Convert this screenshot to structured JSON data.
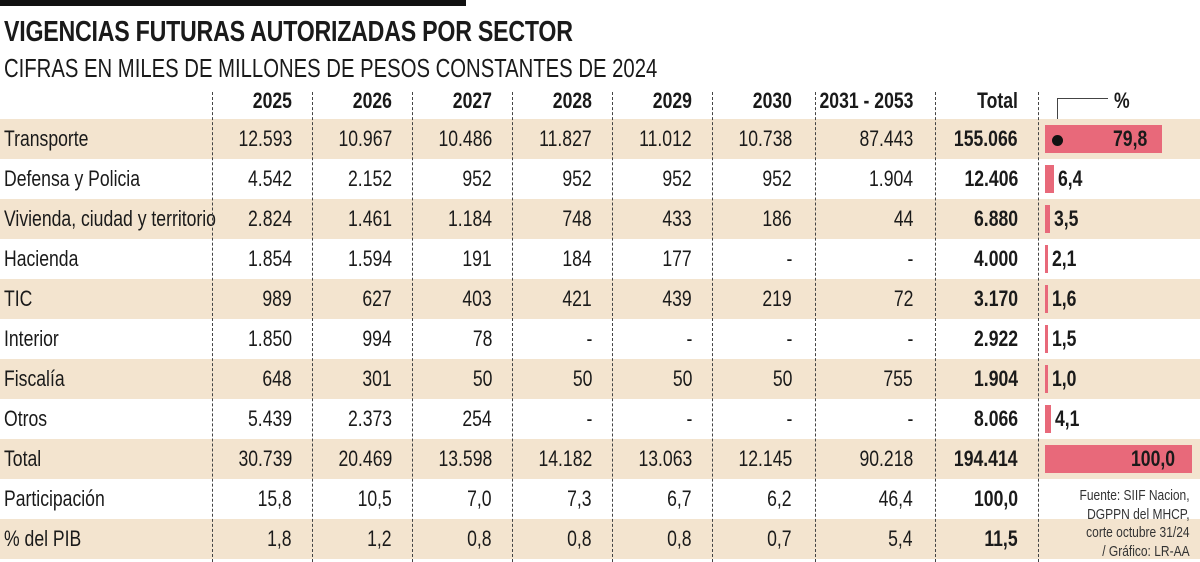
{
  "title": "VIGENCIAS FUTURAS AUTORIZADAS POR SECTOR",
  "subtitle": "CIFRAS EN MILES DE MILLONES DE PESOS CONSTANTES DE 2024",
  "colors": {
    "bar": "#e8697a",
    "row_shade": "#f3e4cf"
  },
  "chart_data": {
    "type": "table",
    "columns": [
      "2025",
      "2026",
      "2027",
      "2028",
      "2029",
      "2030",
      "2031 - 2053",
      "Total",
      "%"
    ],
    "rows": [
      {
        "label": "Transporte",
        "values": [
          "12.593",
          "10.967",
          "10.486",
          "11.827",
          "11.012",
          "10.738",
          "87.443",
          "155.066"
        ],
        "pct": "79,8",
        "pct_value": 79.8
      },
      {
        "label": "Defensa y Policia",
        "values": [
          "4.542",
          "2.152",
          "952",
          "952",
          "952",
          "952",
          "1.904",
          "12.406"
        ],
        "pct": "6,4",
        "pct_value": 6.4
      },
      {
        "label": "Vivienda, ciudad y territorio",
        "values": [
          "2.824",
          "1.461",
          "1.184",
          "748",
          "433",
          "186",
          "44",
          "6.880"
        ],
        "pct": "3,5",
        "pct_value": 3.5
      },
      {
        "label": "Hacienda",
        "values": [
          "1.854",
          "1.594",
          "191",
          "184",
          "177",
          "-",
          "-",
          "4.000"
        ],
        "pct": "2,1",
        "pct_value": 2.1
      },
      {
        "label": "TIC",
        "values": [
          "989",
          "627",
          "403",
          "421",
          "439",
          "219",
          "72",
          "3.170"
        ],
        "pct": "1,6",
        "pct_value": 1.6
      },
      {
        "label": "Interior",
        "values": [
          "1.850",
          "994",
          "78",
          "-",
          "-",
          "-",
          "-",
          "2.922"
        ],
        "pct": "1,5",
        "pct_value": 1.5
      },
      {
        "label": "Fiscalía",
        "values": [
          "648",
          "301",
          "50",
          "50",
          "50",
          "50",
          "755",
          "1.904"
        ],
        "pct": "1,0",
        "pct_value": 1.0
      },
      {
        "label": "Otros",
        "values": [
          "5.439",
          "2.373",
          "254",
          "-",
          "-",
          "-",
          "-",
          "8.066"
        ],
        "pct": "4,1",
        "pct_value": 4.1
      },
      {
        "label": "Total",
        "values": [
          "30.739",
          "20.469",
          "13.598",
          "14.182",
          "13.063",
          "12.145",
          "90.218",
          "194.414"
        ],
        "pct": "100,0",
        "pct_value": 100.0
      },
      {
        "label": "Participación",
        "values": [
          "15,8",
          "10,5",
          "7,0",
          "7,3",
          "6,7",
          "6,2",
          "46,4",
          "100,0"
        ]
      },
      {
        "label": "% del PIB",
        "values": [
          "1,8",
          "1,2",
          "0,8",
          "0,8",
          "0,8",
          "0,7",
          "5,4",
          "11,5"
        ]
      }
    ]
  },
  "note": [
    "Fuente: SIIF Nacion,",
    "DGPPN del MHCP,",
    "corte octubre 31/24",
    "/ Gráfico: LR-AA"
  ]
}
